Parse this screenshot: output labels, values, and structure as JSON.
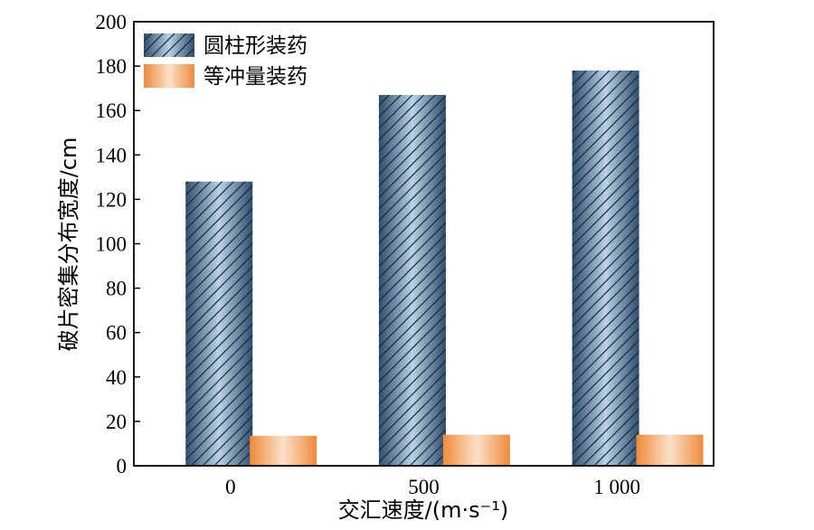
{
  "chart_data": {
    "type": "bar",
    "categories": [
      "0",
      "500",
      "1 000"
    ],
    "series": [
      {
        "name": "圆柱形装药",
        "values": [
          128,
          167,
          178
        ]
      },
      {
        "name": "等冲量装药",
        "values": [
          13.5,
          14,
          14
        ]
      }
    ],
    "xlabel": "交汇速度/(m·s⁻¹)",
    "ylabel": "破片密集分布宽度/cm",
    "ylim": [
      0,
      200
    ],
    "yticks": [
      "0",
      "20",
      "40",
      "60",
      "80",
      "100",
      "120",
      "140",
      "160",
      "180",
      "200"
    ],
    "grid": false,
    "legend_position": "top-left",
    "colors": {
      "series1_dark": "#2e4e6e",
      "series1_light": "#b8d2e6",
      "series1_hatch": "#1b2630",
      "series2_dark": "#ef8a3a",
      "series2_light": "#fbe0c8"
    }
  }
}
